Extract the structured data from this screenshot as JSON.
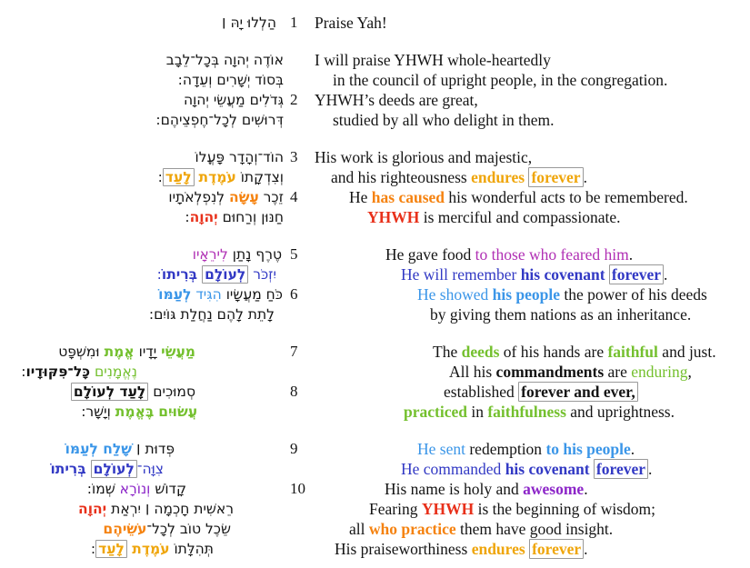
{
  "document": {
    "kind": "bilingual-psalm-page",
    "background": "#FFFFFF"
  },
  "palette": {
    "black": "#141414",
    "amber": "#EFA50A",
    "orange": "#F5820F",
    "red": "#E8301A",
    "blue": "#3239C4",
    "lightblue": "#3B96E8",
    "magenta": "#B02FB4",
    "purple": "#8C25C8",
    "green": "#74C02E",
    "box_border": "#999999"
  },
  "stanzas": [
    {
      "lines": [
        {
          "verse": "1",
          "he": {
            "indent": 8,
            "seg": [
              {
                "t": "הַלְלוּ יָהּ ׀"
              }
            ]
          },
          "en": {
            "indent": 0,
            "seg": [
              {
                "t": "Praise Yah!"
              }
            ]
          }
        }
      ]
    },
    {
      "lines": [
        {
          "verse": "",
          "he": {
            "indent": 0,
            "seg": [
              {
                "t": "אוֹדֶה יְהוָה בְּכָל־לֵבָב"
              }
            ]
          },
          "en": {
            "indent": 0,
            "seg": [
              {
                "t": "I will praise YHWH whole-heartedly"
              }
            ]
          }
        },
        {
          "verse": "",
          "he": {
            "indent": 0,
            "seg": [
              {
                "t": "בְּסוֹד יְשָׁרִים וְעֵדָה:"
              }
            ]
          },
          "en": {
            "indent": 20,
            "seg": [
              {
                "t": "in the council of upright people, in the congregation."
              }
            ]
          }
        },
        {
          "verse": "2",
          "he": {
            "indent": 0,
            "seg": [
              {
                "t": "גְּדֹלִים מַעֲשֵׂי יְהוָה"
              }
            ]
          },
          "en": {
            "indent": 0,
            "seg": [
              {
                "t": "YHWH’s deeds are great,"
              }
            ]
          }
        },
        {
          "verse": "",
          "he": {
            "indent": 0,
            "seg": [
              {
                "t": "דְּרוּשִׁים לְכָל־חֶפְצֵיהֶם:"
              }
            ]
          },
          "en": {
            "indent": 20,
            "seg": [
              {
                "t": "studied by all who delight in them."
              }
            ]
          }
        }
      ]
    },
    {
      "lines": [
        {
          "verse": "3",
          "he": {
            "indent": 0,
            "seg": [
              {
                "t": "הוֹד־וְהָדָר פָּעֳלוֹ"
              }
            ]
          },
          "en": {
            "indent": 0,
            "seg": [
              {
                "t": "His work is glorious and majestic,"
              }
            ]
          }
        },
        {
          "verse": "",
          "he": {
            "indent": 0,
            "seg": [
              {
                "t": "וְצִדְקָתוֹ "
              },
              {
                "t": "עֹמֶדֶת",
                "c": "amber",
                "b": true
              },
              {
                "t": " "
              },
              {
                "t": "לָעַד",
                "c": "amber",
                "b": true,
                "box": true
              },
              {
                "t": ":"
              }
            ]
          },
          "en": {
            "indent": 18,
            "seg": [
              {
                "t": "and his righteousness "
              },
              {
                "t": "endures",
                "c": "amber",
                "b": true
              },
              {
                "t": " "
              },
              {
                "t": "forever",
                "c": "amber",
                "b": true,
                "box": true
              },
              {
                "t": "."
              }
            ]
          }
        },
        {
          "verse": "4",
          "he": {
            "indent": 0,
            "seg": [
              {
                "t": "זֵכֶר "
              },
              {
                "t": "עָשָׂה",
                "c": "orange",
                "b": true
              },
              {
                "t": " לְנִפְלְאֹתָיו"
              }
            ]
          },
          "en": {
            "indent": 38,
            "seg": [
              {
                "t": "He "
              },
              {
                "t": "has caused",
                "c": "orange",
                "b": true
              },
              {
                "t": " his wonderful acts to be remembered."
              }
            ]
          }
        },
        {
          "verse": "",
          "he": {
            "indent": 0,
            "seg": [
              {
                "t": "חַנּוּן וְרַחוּם "
              },
              {
                "t": "יְהוָה",
                "c": "red",
                "b": true
              },
              {
                "t": ":"
              }
            ]
          },
          "en": {
            "indent": 58,
            "seg": [
              {
                "t": "YHWH",
                "c": "red",
                "b": true
              },
              {
                "t": " is merciful and compassionate."
              }
            ]
          }
        }
      ]
    },
    {
      "lines": [
        {
          "verse": "5",
          "he": {
            "indent": 2,
            "seg": [
              {
                "t": "טֶרֶף נָתַן "
              },
              {
                "t": "לִירֵאָיו",
                "c": "magenta"
              }
            ]
          },
          "en": {
            "indent": 78,
            "seg": [
              {
                "t": "He gave food "
              },
              {
                "t": "to those who feared him",
                "c": "magenta"
              },
              {
                "t": "."
              }
            ]
          }
        },
        {
          "verse": "",
          "he": {
            "indent": 8,
            "seg": [
              {
                "t": "יִזְכֹּר ",
                "c": "blue"
              },
              {
                "t": "לְעוֹלָם",
                "c": "blue",
                "b": true,
                "box": true
              },
              {
                "t": " ",
                "c": "blue"
              },
              {
                "t": "בְּרִיתוֹ",
                "c": "blue",
                "b": true
              },
              {
                "t": ":",
                "c": "blue"
              }
            ]
          },
          "en": {
            "indent": 95,
            "seg": [
              {
                "t": "He will remember ",
                "c": "blue"
              },
              {
                "t": "his covenant ",
                "c": "blue",
                "b": true
              },
              {
                "t": "forever",
                "c": "blue",
                "b": true,
                "box": true
              },
              {
                "t": "."
              }
            ]
          }
        },
        {
          "verse": "6",
          "he": {
            "indent": 1,
            "seg": [
              {
                "t": "כֹּחַ מַעֲשָׂיו "
              },
              {
                "t": "הִגִּיד ",
                "c": "lightblue"
              },
              {
                "t": "לְעַמּוֹ",
                "c": "lightblue",
                "b": true
              }
            ]
          },
          "en": {
            "indent": 113,
            "seg": [
              {
                "t": "He showed ",
                "c": "lightblue"
              },
              {
                "t": "his people",
                "c": "lightblue",
                "b": true
              },
              {
                "t": " the power of his deeds"
              }
            ]
          }
        },
        {
          "verse": "",
          "he": {
            "indent": 10,
            "seg": [
              {
                "t": "לָתֵת לָהֶם נַחֲלַת גּוֹיִם:"
              }
            ]
          },
          "en": {
            "indent": 127,
            "seg": [
              {
                "t": "by giving them nations as an inheritance."
              }
            ]
          }
        }
      ]
    },
    {
      "lines": [
        {
          "verse": "7",
          "he": {
            "indent": 97,
            "seg": [
              {
                "t": "מַעֲשֵׂי",
                "c": "green",
                "b": true
              },
              {
                "t": " יָדָיו "
              },
              {
                "t": "אֱמֶת",
                "c": "green",
                "b": true
              },
              {
                "t": " וּמִשְׁפָּט"
              }
            ]
          },
          "en": {
            "indent": 130,
            "seg": [
              {
                "t": "The "
              },
              {
                "t": "deeds",
                "c": "green",
                "b": true
              },
              {
                "t": " of his hands are "
              },
              {
                "t": "faithful",
                "c": "green",
                "b": true
              },
              {
                "t": " and just."
              }
            ]
          }
        },
        {
          "verse": "",
          "he": {
            "indent": 161,
            "seg": [
              {
                "t": "נֶאֱמָנִים",
                "c": "green"
              },
              {
                "t": " "
              },
              {
                "t": "כָּל־פִּקּוּדָיו",
                "b": true
              },
              {
                "t": ":"
              }
            ]
          },
          "en": {
            "indent": 148,
            "seg": [
              {
                "t": "All his "
              },
              {
                "t": "commandments",
                "b": true
              },
              {
                "t": " are "
              },
              {
                "t": "enduring",
                "c": "green"
              },
              {
                "t": ","
              }
            ]
          }
        },
        {
          "verse": "8",
          "he": {
            "indent": 97,
            "seg": [
              {
                "t": "סְמוּכִים "
              },
              {
                "t": "לָעַד לְעוֹלָם",
                "b": true,
                "box": true
              }
            ]
          },
          "en": {
            "indent": 142,
            "seg": [
              {
                "t": "established "
              },
              {
                "t": "forever and ever,",
                "b": true,
                "box": true
              }
            ]
          }
        },
        {
          "verse": "",
          "he": {
            "indent": 95,
            "seg": [
              {
                "t": "עֲשׂוּיִם",
                "c": "green",
                "b": true
              },
              {
                "t": " "
              },
              {
                "t": "בֶּאֱמֶת",
                "c": "green",
                "b": true
              },
              {
                "t": " וְיָשָׁר:"
              }
            ]
          },
          "en": {
            "indent": 98,
            "seg": [
              {
                "t": "practiced",
                "c": "green",
                "b": true
              },
              {
                "t": " in "
              },
              {
                "t": "faithfulness",
                "c": "green",
                "b": true
              },
              {
                "t": " and uprightness."
              }
            ]
          }
        }
      ]
    },
    {
      "lines": [
        {
          "verse": "9",
          "he": {
            "indent": 120,
            "seg": [
              {
                "t": "פְּדוּת ׀ "
              },
              {
                "t": "שָׁלַח ",
                "c": "lightblue",
                "b": true
              },
              {
                "t": "לְעַמּוֹ",
                "c": "lightblue",
                "b": true
              }
            ]
          },
          "en": {
            "indent": 113,
            "seg": [
              {
                "t": "He sent",
                "c": "lightblue"
              },
              {
                "t": " redemption "
              },
              {
                "t": "to his people",
                "c": "lightblue",
                "b": true
              },
              {
                "t": "."
              }
            ]
          }
        },
        {
          "verse": "",
          "he": {
            "indent": 132,
            "seg": [
              {
                "t": "צִוָּה־",
                "c": "blue"
              },
              {
                "t": "לְעוֹלָם",
                "c": "blue",
                "b": true,
                "box": true
              },
              {
                "t": " "
              },
              {
                "t": "בְּרִיתוֹ",
                "c": "blue",
                "b": true
              }
            ]
          },
          "en": {
            "indent": 95,
            "seg": [
              {
                "t": "He commanded ",
                "c": "blue"
              },
              {
                "t": "his covenant ",
                "c": "blue",
                "b": true
              },
              {
                "t": "forever",
                "c": "blue",
                "b": true,
                "box": true
              },
              {
                "t": "."
              }
            ]
          }
        },
        {
          "verse": "10",
          "he": {
            "indent": 107,
            "seg": [
              {
                "t": "קָדוֹשׁ "
              },
              {
                "t": "וְנוֹרָא",
                "c": "purple"
              },
              {
                "t": " שְׁמוֹ:"
              }
            ]
          },
          "en": {
            "indent": 77,
            "seg": [
              {
                "t": "His name is holy and "
              },
              {
                "t": "awesome",
                "c": "purple",
                "b": true
              },
              {
                "t": "."
              }
            ]
          }
        },
        {
          "verse": "",
          "he": {
            "indent": 55,
            "seg": [
              {
                "t": "רֵאשִׁית חָכְמָה ׀ יִרְאַת "
              },
              {
                "t": "יְהוָה",
                "c": "red",
                "b": true
              }
            ]
          },
          "en": {
            "indent": 60,
            "seg": [
              {
                "t": "Fearing "
              },
              {
                "t": "YHWH",
                "c": "red",
                "b": true
              },
              {
                "t": " is the beginning of wisdom;"
              }
            ]
          }
        },
        {
          "verse": "",
          "he": {
            "indent": 58,
            "seg": [
              {
                "t": "שֵׂכֶל טוֹב לְכָל־"
              },
              {
                "t": "עֹשֵׂיהֶם",
                "c": "orange",
                "b": true
              }
            ]
          },
          "en": {
            "indent": 38,
            "seg": [
              {
                "t": "all "
              },
              {
                "t": "who practice",
                "c": "orange",
                "b": true
              },
              {
                "t": " them have good insight."
              }
            ]
          }
        },
        {
          "verse": "",
          "he": {
            "indent": 77,
            "seg": [
              {
                "t": "תְּהִלָּתוֹ "
              },
              {
                "t": "עֹמֶדֶת ",
                "c": "amber",
                "b": true
              },
              {
                "t": "לָעַד",
                "c": "amber",
                "b": true,
                "box": true
              },
              {
                "t": ":"
              }
            ]
          },
          "en": {
            "indent": 22,
            "seg": [
              {
                "t": "His praiseworthiness "
              },
              {
                "t": "endures ",
                "c": "amber",
                "b": true
              },
              {
                "t": "forever",
                "c": "amber",
                "b": true,
                "box": true
              },
              {
                "t": "."
              }
            ]
          }
        }
      ]
    }
  ]
}
